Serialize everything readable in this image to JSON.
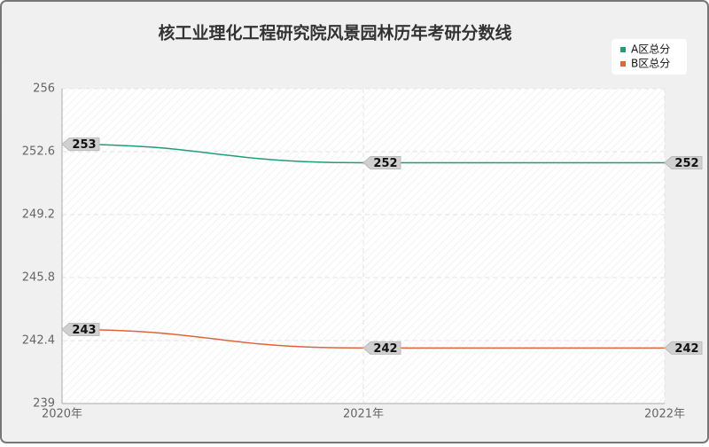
{
  "chart_data": {
    "type": "line",
    "title": "核工业理化工程研究院风景园林历年考研分数线",
    "categories": [
      "2020年",
      "2021年",
      "2022年"
    ],
    "series": [
      {
        "name": "A区总分",
        "color": "#1f9e78",
        "values": [
          253,
          252,
          252
        ]
      },
      {
        "name": "B区总分",
        "color": "#e0643a",
        "values": [
          243,
          242,
          242
        ]
      }
    ],
    "ylim": [
      239,
      256
    ],
    "yticks": [
      239,
      242.4,
      245.8,
      249.2,
      252.6,
      256
    ],
    "grid": true,
    "legend": "top-right"
  }
}
